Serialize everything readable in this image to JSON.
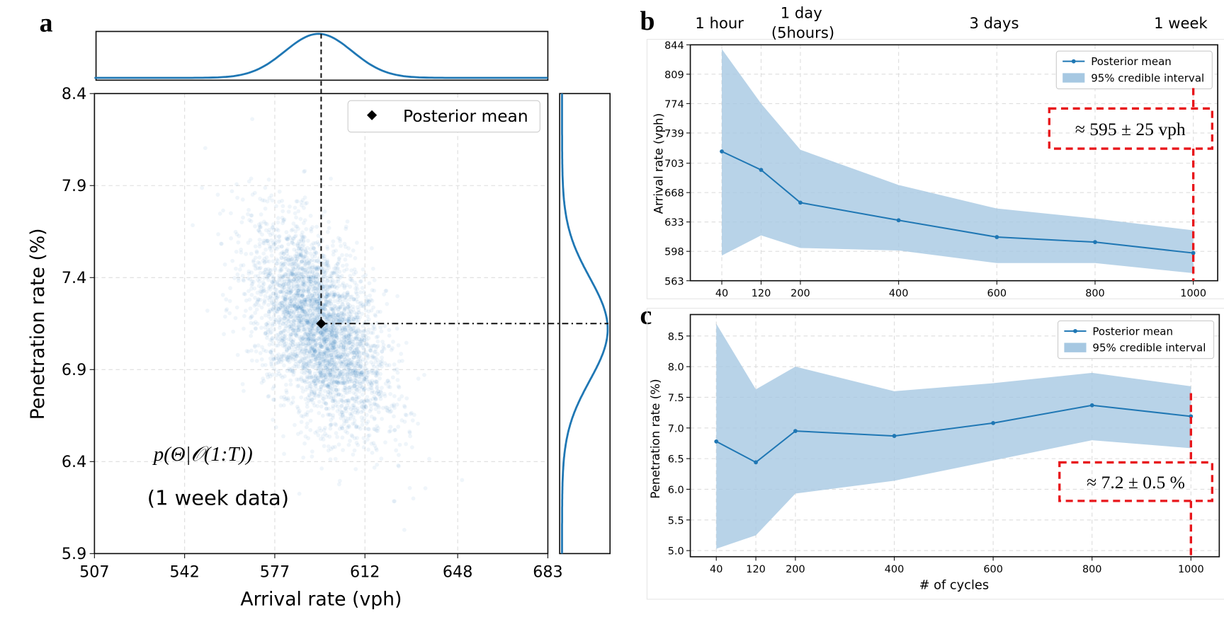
{
  "colors": {
    "series": "#1f77b4",
    "band": "#a6c8e2",
    "annot": "#e8161b"
  },
  "chart_data": [
    {
      "panel": "a",
      "type": "scatter",
      "xlabel": "Arrival rate (vph)",
      "ylabel": "Penetration rate (%)",
      "xlim": [
        507,
        683
      ],
      "ylim": [
        5.9,
        8.4
      ],
      "xticks": [
        "507",
        "542",
        "577",
        "612",
        "648",
        "683"
      ],
      "yticks": [
        "5.9",
        "6.4",
        "6.9",
        "7.4",
        "7.9",
        "8.4"
      ],
      "legend": "Posterior mean",
      "legend_position": "top-right",
      "posterior_mean": {
        "x": 595,
        "y": 7.15
      },
      "distribution": {
        "mean_x": 594,
        "mean_y": 7.12,
        "sd_x": 13,
        "sd_y": 0.28,
        "corr": -0.5,
        "n": 3500
      },
      "annotation_formula": "p(Θ|𝒪(1:T))",
      "annotation_note": "(1 week data)"
    },
    {
      "panel": "b",
      "type": "line",
      "ylabel": "Arrival rate (vph)",
      "ylim": [
        563,
        844
      ],
      "yticks": [
        "563",
        "598",
        "633",
        "668",
        "703",
        "739",
        "774",
        "809",
        "844"
      ],
      "x": [
        40,
        120,
        200,
        400,
        600,
        800,
        1000
      ],
      "xticks": [
        "40",
        "120",
        "200",
        "400",
        "600",
        "800",
        "1000"
      ],
      "series": [
        {
          "name": "Posterior mean",
          "values": [
            717,
            695,
            656,
            635,
            615,
            609,
            596
          ]
        }
      ],
      "band": {
        "name": "95% credible interval",
        "lower": [
          593,
          617,
          602,
          599,
          584,
          584,
          572
        ],
        "upper": [
          839,
          774,
          719,
          677,
          649,
          637,
          623
        ]
      },
      "top_labels": [
        "1 hour",
        "1 day",
        "(5hours)",
        "3 days",
        "1 week"
      ],
      "annotation": "≈ 595 ± 25 vph",
      "legend_position": "top-right"
    },
    {
      "panel": "c",
      "type": "line",
      "xlabel": "# of cycles",
      "ylabel": "Penetration rate (%)",
      "ylim": [
        4.9,
        8.85
      ],
      "yticks": [
        "5.0",
        "5.5",
        "6.0",
        "6.5",
        "7.0",
        "7.5",
        "8.0",
        "8.5"
      ],
      "x": [
        40,
        120,
        200,
        400,
        600,
        800,
        1000
      ],
      "xticks": [
        "40",
        "120",
        "200",
        "400",
        "600",
        "800",
        "1000"
      ],
      "series": [
        {
          "name": "Posterior mean",
          "values": [
            6.78,
            6.44,
            6.95,
            6.87,
            7.08,
            7.37,
            7.19
          ]
        }
      ],
      "band": {
        "name": "95% credible interval",
        "lower": [
          5.03,
          5.25,
          5.93,
          6.14,
          6.47,
          6.8,
          6.67
        ],
        "upper": [
          8.7,
          7.63,
          8.0,
          7.6,
          7.73,
          7.9,
          7.68
        ]
      },
      "annotation": "≈ 7.2 ± 0.5 %",
      "legend_position": "top-right"
    }
  ],
  "panel_letters": [
    "a",
    "b",
    "c"
  ]
}
